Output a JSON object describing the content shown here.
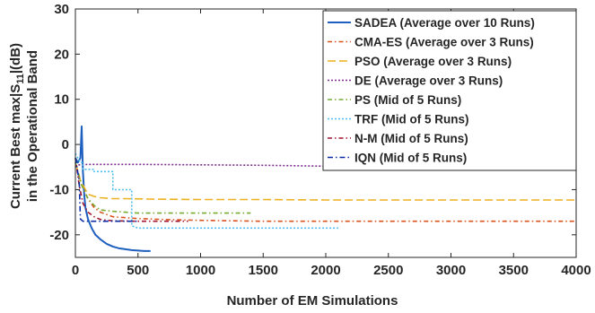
{
  "chart_data": {
    "type": "line",
    "xlabel": "Number of EM Simulations",
    "ylabel_line1": "Current Best max|S",
    "ylabel_sub": "11",
    "ylabel_line1_end": "|(dB)",
    "ylabel_line2": "in the Operational Band",
    "xlim": [
      0,
      4000
    ],
    "ylim": [
      -25,
      30
    ],
    "xticks": [
      0,
      500,
      1000,
      1500,
      2000,
      2500,
      3000,
      3500,
      4000
    ],
    "yticks": [
      30,
      20,
      10,
      0,
      -10,
      -20
    ],
    "grid": false,
    "legend_position": "top-right",
    "series": [
      {
        "name": "SADEA (Average over 10 Runs)",
        "color": "#1f5fbf",
        "dash": "solid",
        "x": [
          0,
          20,
          40,
          50,
          60,
          70,
          80,
          100,
          130,
          160,
          200,
          250,
          300,
          350,
          400,
          450,
          500,
          550,
          600
        ],
        "y": [
          -3,
          -4,
          -3,
          4,
          -6,
          -11,
          -14,
          -16.5,
          -18.5,
          -20,
          -21,
          -22,
          -22.6,
          -23,
          -23.2,
          -23.4,
          -23.5,
          -23.6,
          -23.6
        ]
      },
      {
        "name": "CMA-ES (Average over 3 Runs)",
        "color": "#d9531e",
        "dash": "5,3,1.5,3",
        "x": [
          0,
          50,
          100,
          150,
          200,
          300,
          500,
          700,
          1000,
          1500,
          2000,
          3000,
          4000
        ],
        "y": [
          -4,
          -9,
          -12,
          -14,
          -15,
          -16,
          -16.4,
          -16.6,
          -16.8,
          -17,
          -17,
          -17,
          -17
        ]
      },
      {
        "name": "PSO (Average over 3 Runs)",
        "color": "#edb120",
        "dash": "9,4",
        "x": [
          0,
          40,
          80,
          100,
          150,
          200,
          300,
          400,
          600,
          1000,
          1500,
          2000,
          3000,
          4000
        ],
        "y": [
          -4,
          -8,
          -10,
          -11,
          -11.5,
          -11.8,
          -12,
          -12,
          -12.1,
          -12.2,
          -12.2,
          -12.3,
          -12.3,
          -12.3
        ]
      },
      {
        "name": "DE (Average over 3 Runs)",
        "color": "#7e2f8e",
        "dash": "2,2",
        "x": [
          0,
          30,
          50,
          100,
          500,
          1000,
          1500,
          2000,
          2500,
          3000,
          3500,
          4000
        ],
        "y": [
          -5,
          -4.5,
          -4.5,
          -4.4,
          -4.4,
          -4.5,
          -4.6,
          -4.8,
          -5,
          -5.1,
          -5.2,
          -5.3
        ]
      },
      {
        "name": "PS (Mid of 5 Runs)",
        "color": "#77ac30",
        "dash": "5,3,1.5,3",
        "x": [
          0,
          50,
          100,
          150,
          200,
          300,
          400,
          500,
          700,
          1000,
          1400
        ],
        "y": [
          -4,
          -9,
          -12,
          -13.5,
          -14.5,
          -14.8,
          -15,
          -15.2,
          -15.2,
          -15.2,
          -15.2
        ]
      },
      {
        "name": "TRF (Mid of 5 Runs)",
        "color": "#4dbeee",
        "dash": "2,2",
        "x": [
          0,
          40,
          60,
          60,
          150,
          150,
          300,
          300,
          450,
          450,
          500,
          700,
          1000,
          1500,
          2100
        ],
        "y": [
          -2,
          -4,
          -4,
          -5.5,
          -5.5,
          -6,
          -6,
          -10,
          -10,
          -18,
          -18.5,
          -18.5,
          -18.5,
          -18.5,
          -18.5
        ]
      },
      {
        "name": "N-M (Mid of 5 Runs)",
        "color": "#a2142f",
        "dash": "5,3,1.5,3",
        "x": [
          0,
          30,
          60,
          100,
          150,
          200,
          300,
          500,
          700,
          900
        ],
        "y": [
          -3,
          -9,
          -13,
          -15,
          -16,
          -16.6,
          -16.9,
          -17,
          -17,
          -17
        ]
      },
      {
        "name": "IQN (Mid of 5 Runs)",
        "color": "#0b2ea6",
        "dash": "6,3,1.5,3",
        "x": [
          0,
          30,
          40,
          60,
          80,
          150,
          300,
          500
        ],
        "y": [
          -3,
          -8,
          -16.5,
          -17,
          -17,
          -17,
          -17,
          -17
        ]
      }
    ]
  }
}
